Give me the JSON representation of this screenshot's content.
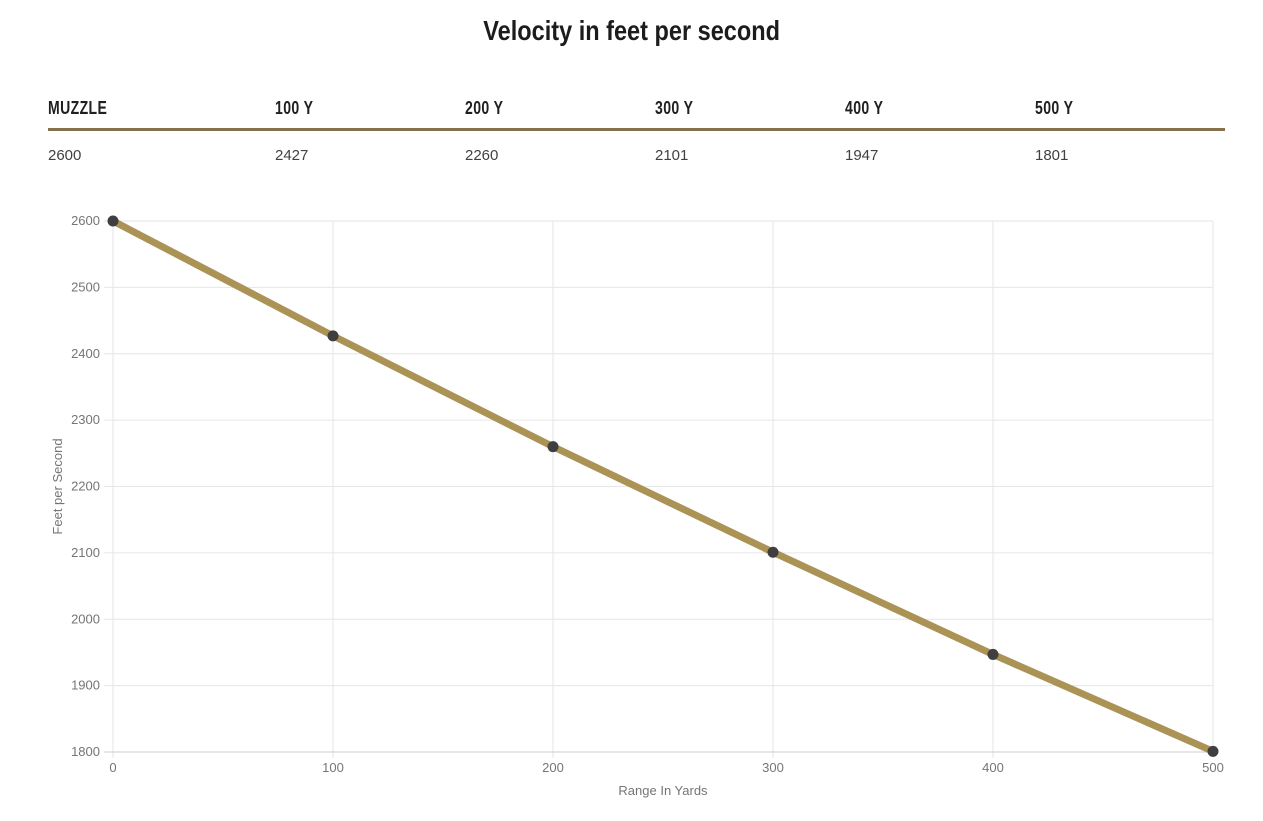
{
  "title": "Velocity in feet per second",
  "table": {
    "columns": [
      {
        "label": "MUZZLE",
        "value": "2600"
      },
      {
        "label": "100 Y",
        "value": "2427"
      },
      {
        "label": "200 Y",
        "value": "2260"
      },
      {
        "label": "300 Y",
        "value": "2101"
      },
      {
        "label": "400 Y",
        "value": "1947"
      },
      {
        "label": "500 Y",
        "value": "1801"
      }
    ]
  },
  "colors": {
    "header_rule": "#85724d",
    "line": "#ab9255",
    "point": "#3f3f3f",
    "grid": "#e6e6e6",
    "baseline": "#cccccc",
    "tick_label": "#757575",
    "axis_title": "#757575"
  },
  "chart_data": {
    "type": "line",
    "title": "",
    "xlabel": "Range In Yards",
    "ylabel": "Feet per Second",
    "x": [
      0,
      100,
      200,
      300,
      400,
      500
    ],
    "series": [
      {
        "name": "Velocity",
        "values": [
          2600,
          2427,
          2260,
          2101,
          1947,
          1801
        ]
      }
    ],
    "xlim": [
      0,
      500
    ],
    "ylim": [
      1800,
      2600
    ],
    "x_ticks": [
      0,
      100,
      200,
      300,
      400,
      500
    ],
    "y_ticks": [
      1800,
      1900,
      2000,
      2100,
      2200,
      2300,
      2400,
      2500,
      2600
    ],
    "grid": true,
    "legend": "none"
  }
}
